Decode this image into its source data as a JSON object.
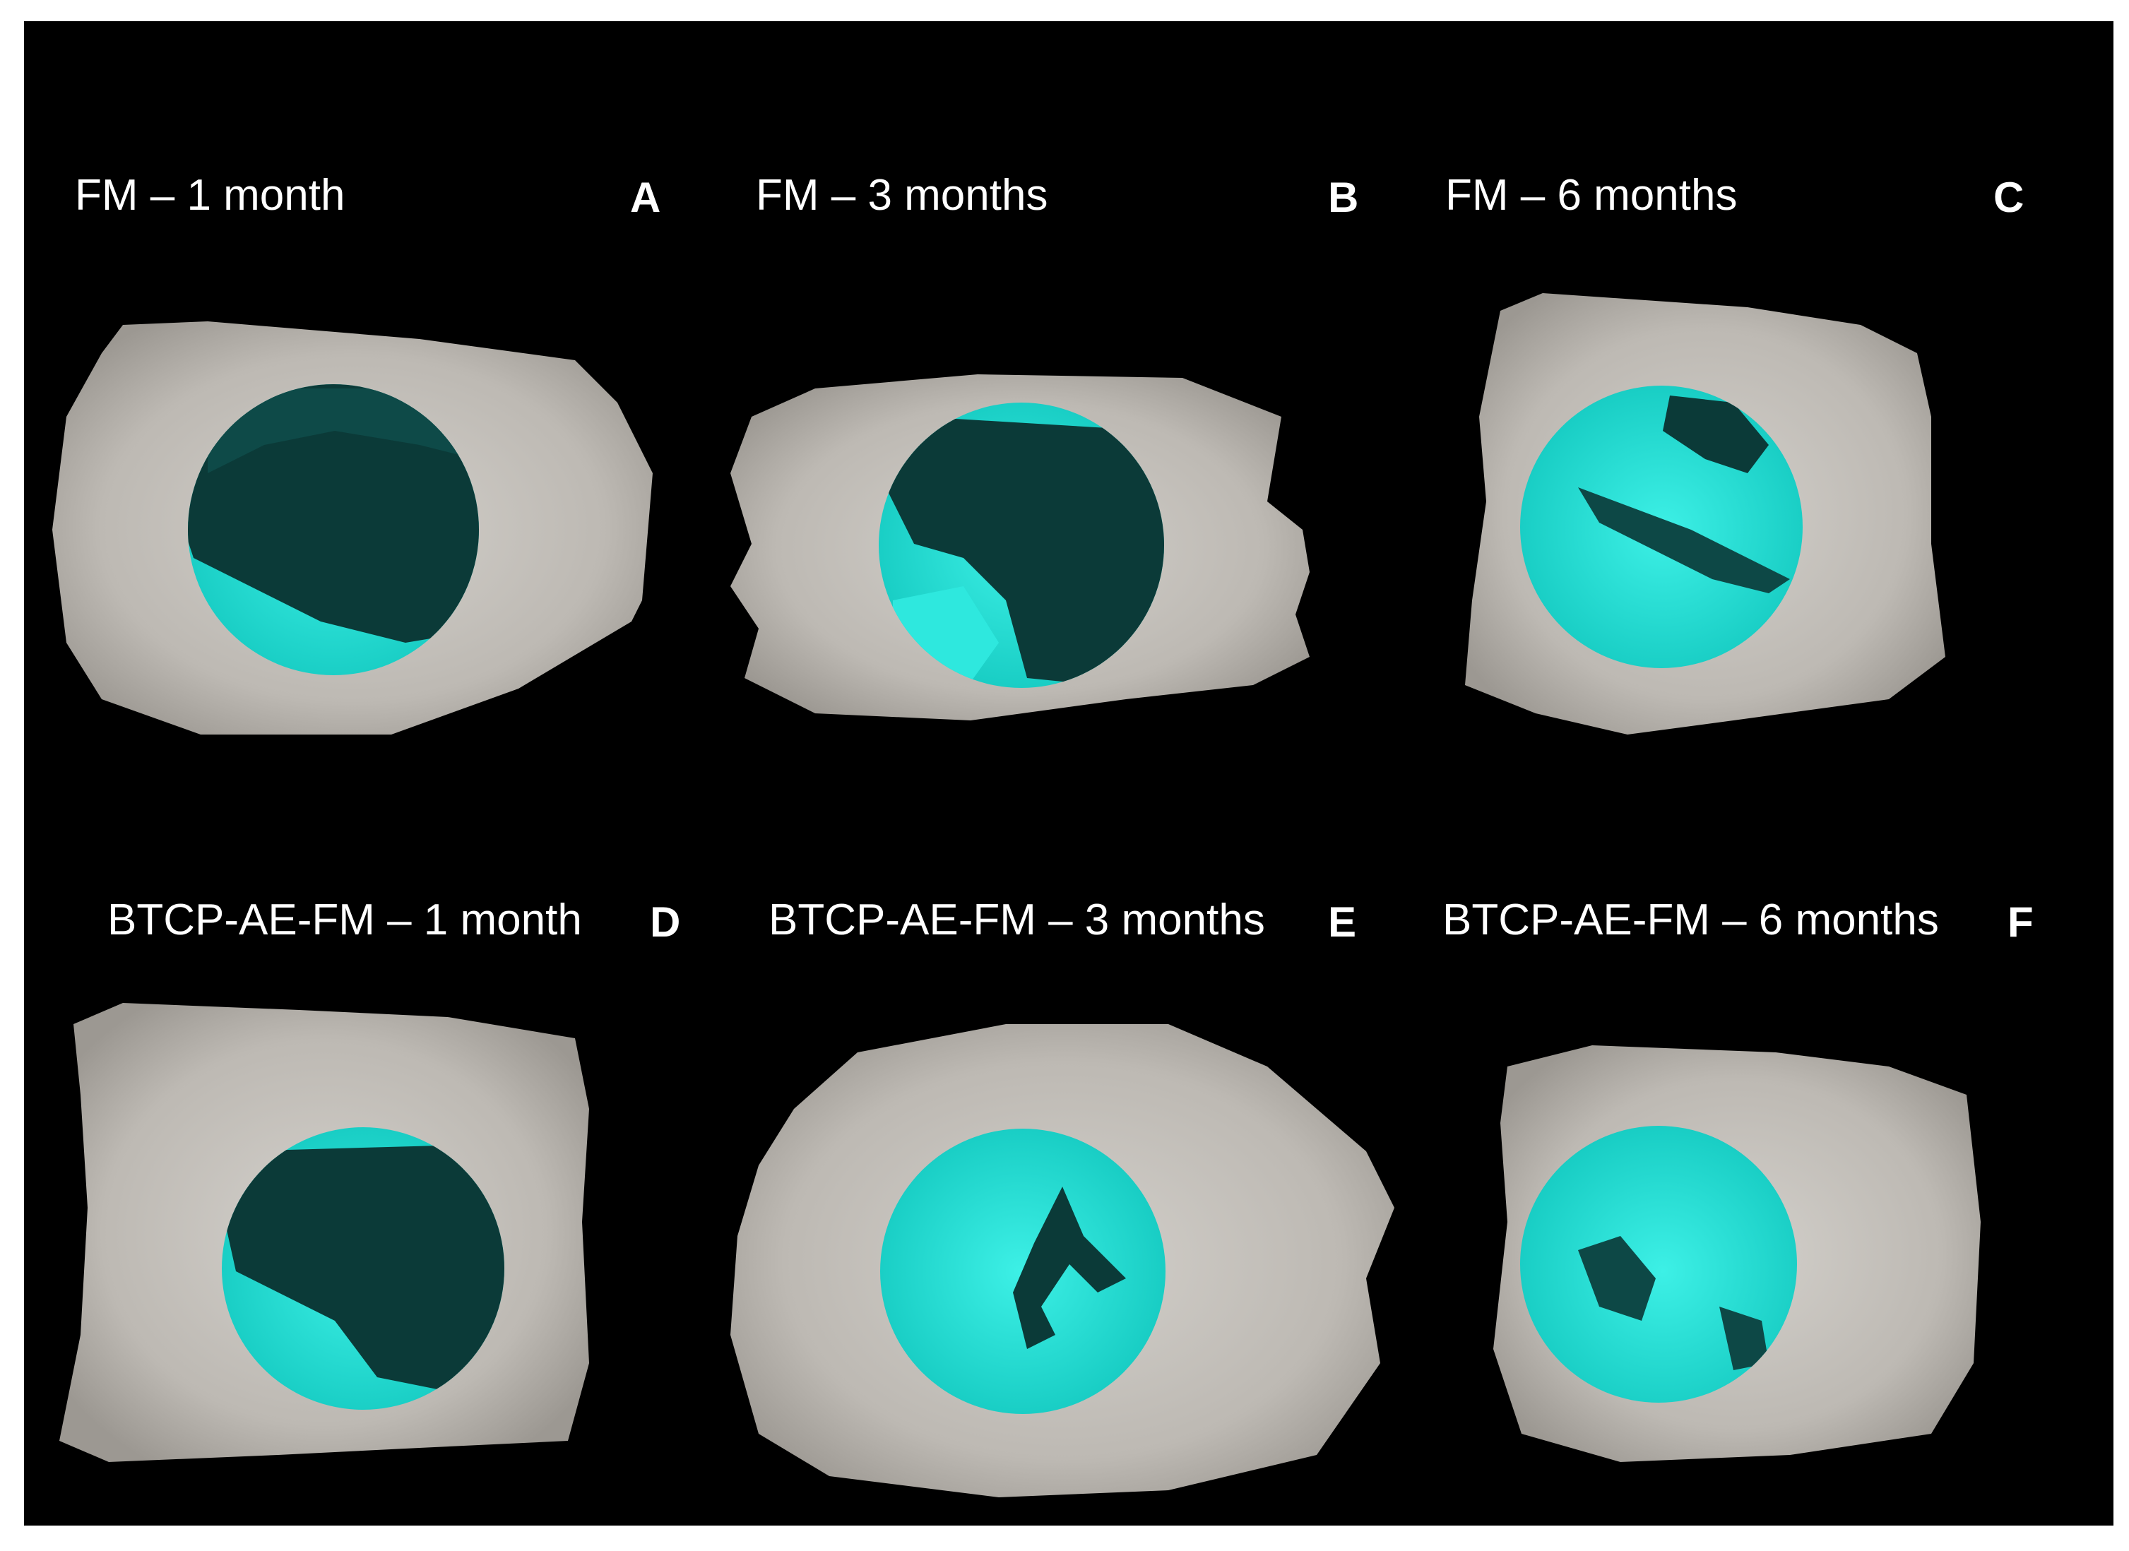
{
  "panels": [
    {
      "id": "A",
      "caption": "FM – 1 month",
      "letter": "A"
    },
    {
      "id": "B",
      "caption": "FM  – 3 months",
      "letter": "B"
    },
    {
      "id": "C",
      "caption": "FM – 6 months",
      "letter": "C"
    },
    {
      "id": "D",
      "caption": "BTCP-AE-FM – 1 month",
      "letter": "D"
    },
    {
      "id": "E",
      "caption": "BTCP-AE-FM – 3 months",
      "letter": "E"
    },
    {
      "id": "F",
      "caption": "BTCP-AE-FM – 6 months",
      "letter": "F"
    }
  ],
  "colors": {
    "background": "#000000",
    "bone": "#c9c6c1",
    "defect_cyan": "#1fe0d6",
    "defect_dark": "#0b3a38"
  }
}
